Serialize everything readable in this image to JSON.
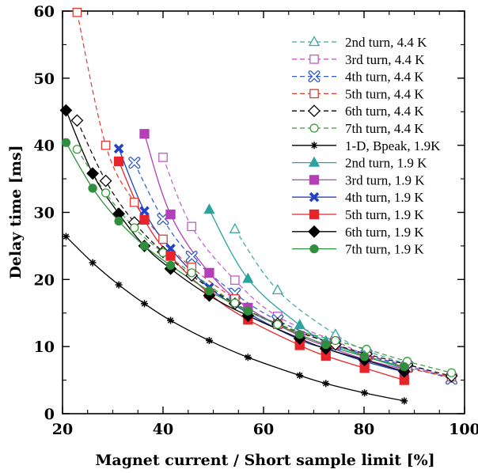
{
  "chart_data": {
    "type": "line",
    "title": "",
    "xlabel": "Magnet current / Short sample limit [%]",
    "ylabel": "Delay time [ms]",
    "xlim": [
      20,
      100
    ],
    "ylim": [
      0,
      60
    ],
    "x_ticks": [
      "20",
      "40",
      "60",
      "80",
      "100"
    ],
    "y_ticks": [
      "0",
      "10",
      "20",
      "30",
      "40",
      "50",
      "60"
    ],
    "grid": false,
    "legend_position": "top-right",
    "series": [
      {
        "name": "2nd turn, 4.4 K",
        "color": "#3aa6a0",
        "dash": true,
        "marker": "triangle-open",
        "x": [
          54.3,
          62.8,
          74.3,
          80.5,
          88.6,
          97.4
        ],
        "y": [
          27.5,
          18.4,
          11.8,
          9.4,
          7.4,
          5.3
        ]
      },
      {
        "name": "3rd turn, 4.4 K",
        "color": "#c35ac3",
        "dash": true,
        "marker": "square-open",
        "x": [
          40.0,
          45.7,
          54.3,
          62.8,
          74.3,
          80.5,
          88.6,
          97.4
        ],
        "y": [
          38.2,
          27.9,
          19.9,
          14.5,
          10.8,
          8.8,
          7.2,
          5.3
        ]
      },
      {
        "name": "4th turn, 4.4 K",
        "color": "#2f58c9",
        "dash": true,
        "marker": "x-open",
        "x": [
          34.3,
          40.0,
          45.7,
          54.3,
          62.8,
          74.3,
          80.5,
          88.6,
          97.4
        ],
        "y": [
          37.4,
          29.0,
          23.4,
          17.9,
          13.9,
          10.3,
          8.7,
          7.0,
          5.2
        ]
      },
      {
        "name": "5th turn, 4.4 K",
        "color": "#e03a2e",
        "dash": true,
        "marker": "square-open",
        "x": [
          22.9,
          28.6,
          34.3,
          40.0,
          45.7,
          54.3,
          62.8,
          74.3,
          80.5,
          88.6,
          97.4
        ],
        "y": [
          59.8,
          40.0,
          31.5,
          26.0,
          21.8,
          17.1,
          13.3,
          10.3,
          8.6,
          6.8,
          5.5
        ]
      },
      {
        "name": "6th turn, 4.4 K",
        "color": "#000000",
        "dash": true,
        "marker": "diamond-open",
        "x": [
          22.9,
          28.6,
          34.3,
          40.0,
          45.7,
          54.3,
          62.8,
          74.3,
          80.5,
          88.6,
          97.4
        ],
        "y": [
          43.7,
          34.7,
          28.5,
          24.1,
          20.6,
          16.4,
          13.4,
          10.3,
          8.9,
          7.3,
          5.6
        ]
      },
      {
        "name": "7th turn, 4.4 K",
        "color": "#3a9a3a",
        "dash": true,
        "marker": "circle-open",
        "x": [
          22.9,
          28.6,
          34.3,
          40.0,
          45.7,
          54.3,
          62.8,
          74.3,
          80.5,
          88.6,
          97.4
        ],
        "y": [
          39.4,
          32.9,
          27.7,
          24.0,
          21.0,
          16.5,
          13.3,
          10.9,
          9.6,
          7.8,
          6.1
        ]
      },
      {
        "name": "1-D, Bpeak, 1.9K",
        "color": "#000000",
        "dash": false,
        "marker": "asterisk",
        "x": [
          20.7,
          26.0,
          31.2,
          36.3,
          41.5,
          49.2,
          56.9,
          67.2,
          72.4,
          80.1,
          88.0
        ],
        "y": [
          26.4,
          22.5,
          19.2,
          16.4,
          13.9,
          10.9,
          8.4,
          5.7,
          4.5,
          3.1,
          1.9
        ]
      },
      {
        "name": "2nd turn, 1.9 K",
        "color": "#2aa39f",
        "dash": false,
        "marker": "triangle",
        "x": [
          49.2,
          56.9,
          67.2,
          72.4,
          80.1,
          88.0
        ],
        "y": [
          30.4,
          20.1,
          13.2,
          10.8,
          8.6,
          6.7
        ]
      },
      {
        "name": "3rd turn, 1.9 K",
        "color": "#b53fb8",
        "dash": false,
        "marker": "square",
        "x": [
          36.3,
          41.5,
          49.2,
          56.9,
          67.2,
          72.4,
          80.1,
          88.0
        ],
        "y": [
          41.7,
          29.7,
          21.0,
          15.8,
          11.6,
          10.1,
          8.1,
          6.6
        ]
      },
      {
        "name": "4th turn, 1.9 K",
        "color": "#2341c7",
        "dash": false,
        "marker": "x",
        "x": [
          31.2,
          36.3,
          41.5,
          49.2,
          56.9,
          67.2,
          72.4,
          80.1,
          88.0
        ],
        "y": [
          39.5,
          30.2,
          24.6,
          18.8,
          15.0,
          11.0,
          9.7,
          7.8,
          6.2
        ]
      },
      {
        "name": "5th turn, 1.9 K",
        "color": "#e8242a",
        "dash": false,
        "marker": "square",
        "x": [
          31.2,
          36.3,
          41.5,
          49.2,
          56.9,
          67.2,
          72.4,
          80.1,
          88.0
        ],
        "y": [
          37.6,
          28.9,
          23.5,
          17.9,
          14.0,
          10.2,
          8.6,
          6.8,
          5.0
        ]
      },
      {
        "name": "6th turn, 1.9 K",
        "color": "#000000",
        "dash": false,
        "marker": "diamond",
        "x": [
          20.7,
          26.0,
          31.2,
          36.3,
          41.5,
          49.2,
          56.9,
          67.2,
          72.4,
          80.1,
          88.0
        ],
        "y": [
          45.2,
          35.8,
          29.8,
          25.0,
          21.6,
          17.6,
          14.6,
          11.2,
          9.7,
          8.0,
          6.3
        ]
      },
      {
        "name": "7th turn, 1.9 K",
        "color": "#2f8f3d",
        "dash": false,
        "marker": "circle",
        "x": [
          20.7,
          26.0,
          31.2,
          36.3,
          41.5,
          49.2,
          56.9,
          67.2,
          72.4,
          80.1,
          88.0
        ],
        "y": [
          40.4,
          33.6,
          28.7,
          25.0,
          22.1,
          18.3,
          15.3,
          11.8,
          10.3,
          8.5,
          7.0
        ]
      }
    ]
  }
}
